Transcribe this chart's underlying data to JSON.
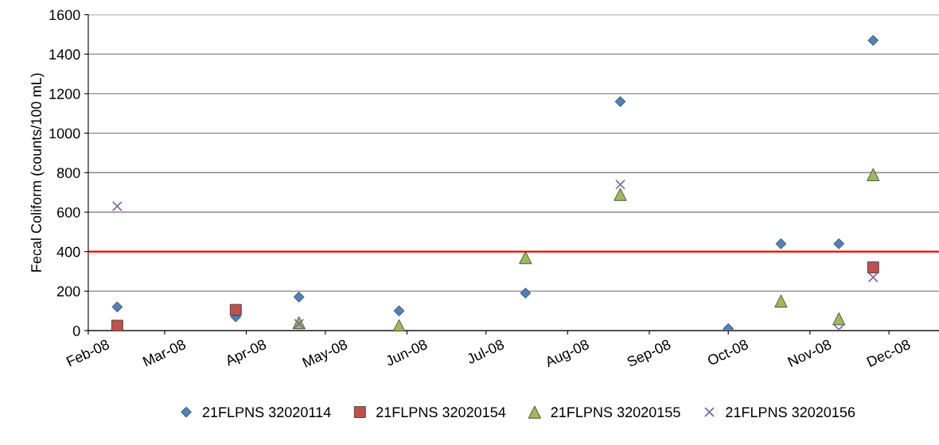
{
  "chart_data": {
    "type": "scatter",
    "ylabel": "Fecal Coliform (counts/100 mL)",
    "xlim": [
      "2008-02-01",
      "2008-12-20"
    ],
    "ylim": [
      0,
      1600
    ],
    "yticks": [
      0,
      200,
      400,
      600,
      800,
      1000,
      1200,
      1400,
      1600
    ],
    "xticks": [
      {
        "value": "2008-02-01",
        "label": "Feb-08"
      },
      {
        "value": "2008-03-01",
        "label": "Mar-08"
      },
      {
        "value": "2008-04-01",
        "label": "Apr-08"
      },
      {
        "value": "2008-05-01",
        "label": "May-08"
      },
      {
        "value": "2008-06-01",
        "label": "Jun-08"
      },
      {
        "value": "2008-07-01",
        "label": "Jul-08"
      },
      {
        "value": "2008-08-01",
        "label": "Aug-08"
      },
      {
        "value": "2008-09-01",
        "label": "Sep-08"
      },
      {
        "value": "2008-10-01",
        "label": "Oct-08"
      },
      {
        "value": "2008-11-01",
        "label": "Nov-08"
      },
      {
        "value": "2008-12-01",
        "label": "Dec-08"
      }
    ],
    "grid": "y",
    "legend": "bottom",
    "ref_lines": [
      {
        "axis": "y",
        "value": 400,
        "color": "#ff0000"
      }
    ],
    "series": [
      {
        "name": "21FLPNS 32020114",
        "color": "#4f81bd",
        "marker": "diamond",
        "x": [
          "2008-02-12",
          "2008-03-28",
          "2008-04-21",
          "2008-05-29",
          "2008-07-16",
          "2008-08-21",
          "2008-10-01",
          "2008-10-21",
          "2008-11-12",
          "2008-11-25"
        ],
        "values": [
          120,
          70,
          170,
          100,
          190,
          1160,
          10,
          440,
          440,
          1470
        ]
      },
      {
        "name": "21FLPNS 32020154",
        "color": "#c0504d",
        "marker": "square",
        "x": [
          "2008-02-12",
          "2008-03-28",
          "2008-11-25"
        ],
        "values": [
          25,
          105,
          320
        ]
      },
      {
        "name": "21FLPNS 32020155",
        "color": "#9bbb59",
        "marker": "triangle",
        "x": [
          "2008-04-21",
          "2008-05-29",
          "2008-07-16",
          "2008-08-21",
          "2008-10-21",
          "2008-11-12",
          "2008-11-25"
        ],
        "values": [
          40,
          25,
          370,
          690,
          150,
          60,
          790
        ]
      },
      {
        "name": "21FLPNS 32020156",
        "color": "#8064a2",
        "marker": "cross",
        "x": [
          "2008-02-12",
          "2008-04-21",
          "2008-08-21",
          "2008-11-12",
          "2008-11-25"
        ],
        "values": [
          630,
          35,
          740,
          5,
          270
        ]
      }
    ]
  }
}
